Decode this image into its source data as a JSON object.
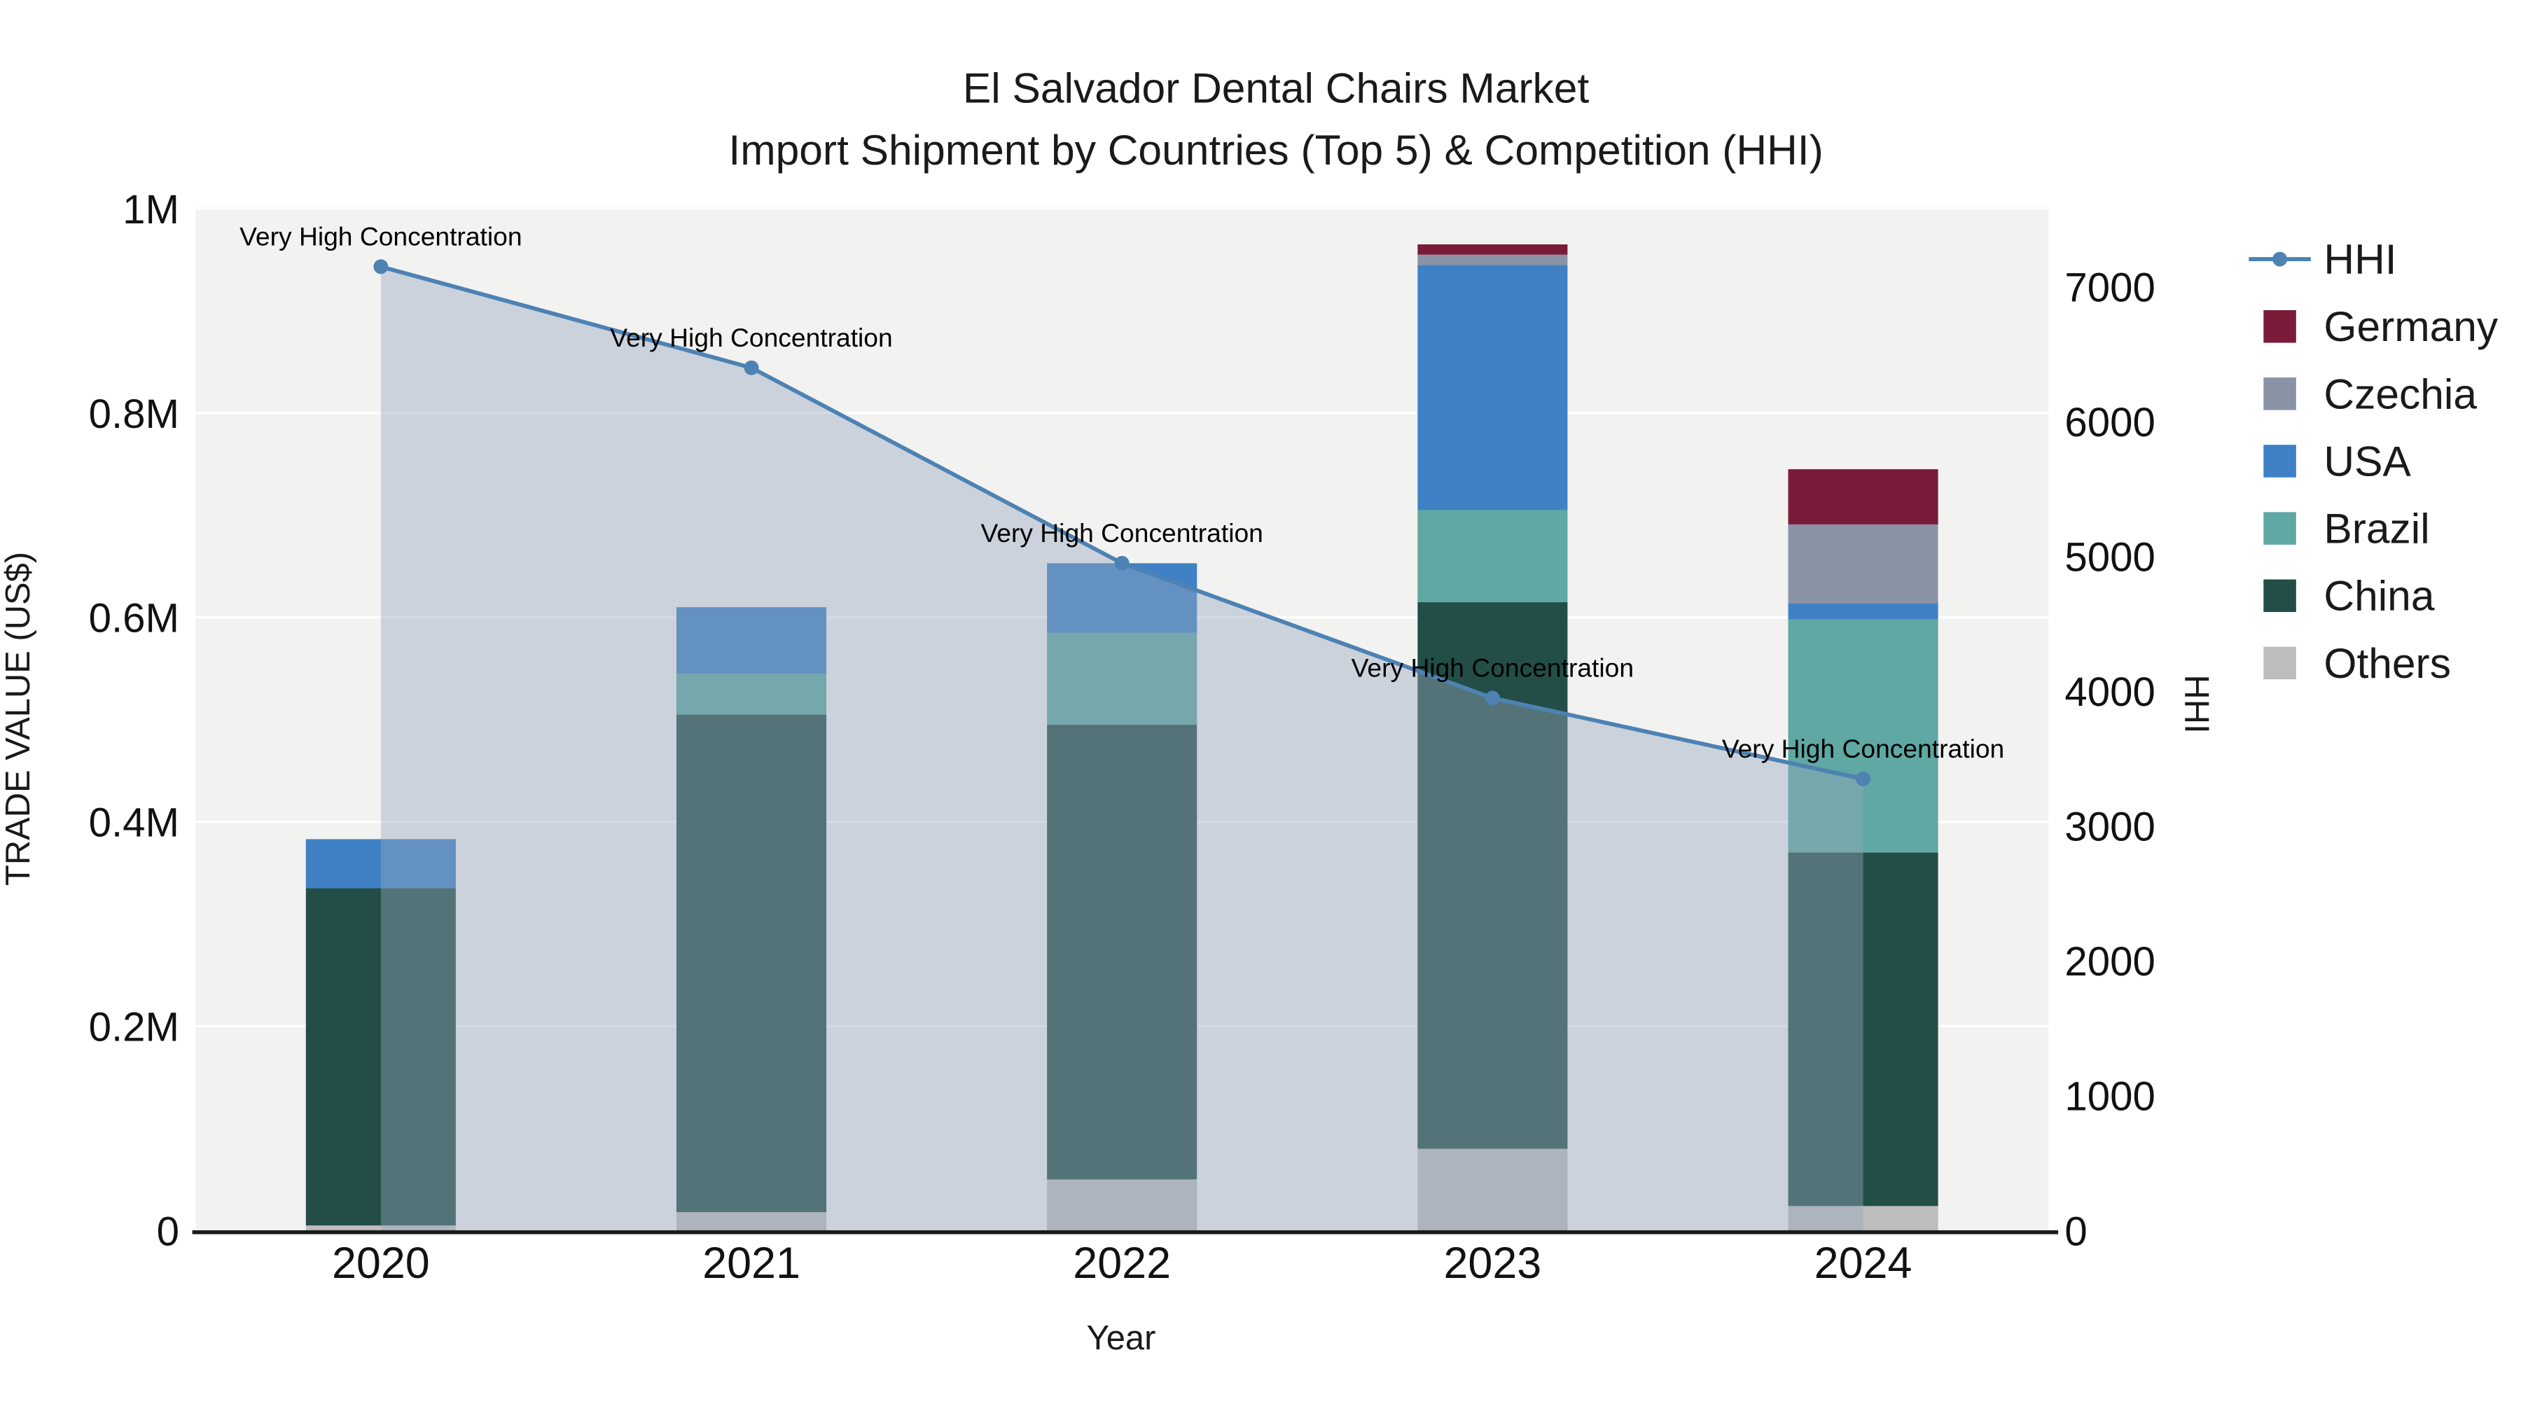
{
  "chart_data": {
    "type": "bar",
    "subtype": "stacked_bars_with_line_overlay_and_area",
    "title": "El Salvador Dental Chairs Market",
    "subtitle": "Import Shipment by Countries (Top 5) & Competition (HHI)",
    "xlabel": "Year",
    "ylabel": "TRADE VALUE (US$)",
    "ylabel_right": "HHI",
    "categories": [
      "2020",
      "2021",
      "2022",
      "2023",
      "2024"
    ],
    "series": [
      {
        "name": "Others",
        "color": "#bdbdbd",
        "values": [
          5000,
          18000,
          50000,
          80000,
          24000
        ]
      },
      {
        "name": "China",
        "color": "#234e48",
        "values": [
          330000,
          487000,
          445000,
          535000,
          346000
        ]
      },
      {
        "name": "Brazil",
        "color": "#5fa8a3",
        "values": [
          0,
          40000,
          90000,
          90000,
          228000
        ]
      },
      {
        "name": "USA",
        "color": "#3f81c4",
        "values": [
          48000,
          65000,
          68000,
          240000,
          16000
        ]
      },
      {
        "name": "Czechia",
        "color": "#8a93a6",
        "values": [
          0,
          0,
          0,
          10000,
          77000
        ]
      },
      {
        "name": "Germany",
        "color": "#7a1b3a",
        "values": [
          0,
          0,
          0,
          10000,
          54000
        ]
      }
    ],
    "line": {
      "name": "HHI",
      "color": "#4d82b3",
      "area_fill": "#96a6bd",
      "area_opacity": 0.42,
      "values": [
        7150,
        6400,
        4950,
        3950,
        3350
      ],
      "point_annotations": [
        "Very High Concentration",
        "Very High Concentration",
        "Very High Concentration",
        "Very High Concentration",
        "Very High Concentration"
      ]
    },
    "left_axis": {
      "max": 1000000,
      "ticks": [
        0,
        200000,
        400000,
        600000,
        800000,
        1000000
      ],
      "tick_labels": [
        "0",
        "0.2M",
        "0.4M",
        "0.6M",
        "0.8M",
        "1M"
      ]
    },
    "right_axis": {
      "max": 7000,
      "ticks": [
        0,
        1000,
        2000,
        3000,
        4000,
        5000,
        6000,
        7000
      ],
      "tick_labels": [
        "0",
        "1000",
        "2000",
        "3000",
        "4000",
        "5000",
        "6000",
        "7000"
      ]
    },
    "legend": {
      "position": "right",
      "entries": [
        "HHI",
        "Germany",
        "Czechia",
        "USA",
        "Brazil",
        "China",
        "Others"
      ]
    },
    "grid": true,
    "plot_bg": "#f2f2f1"
  }
}
